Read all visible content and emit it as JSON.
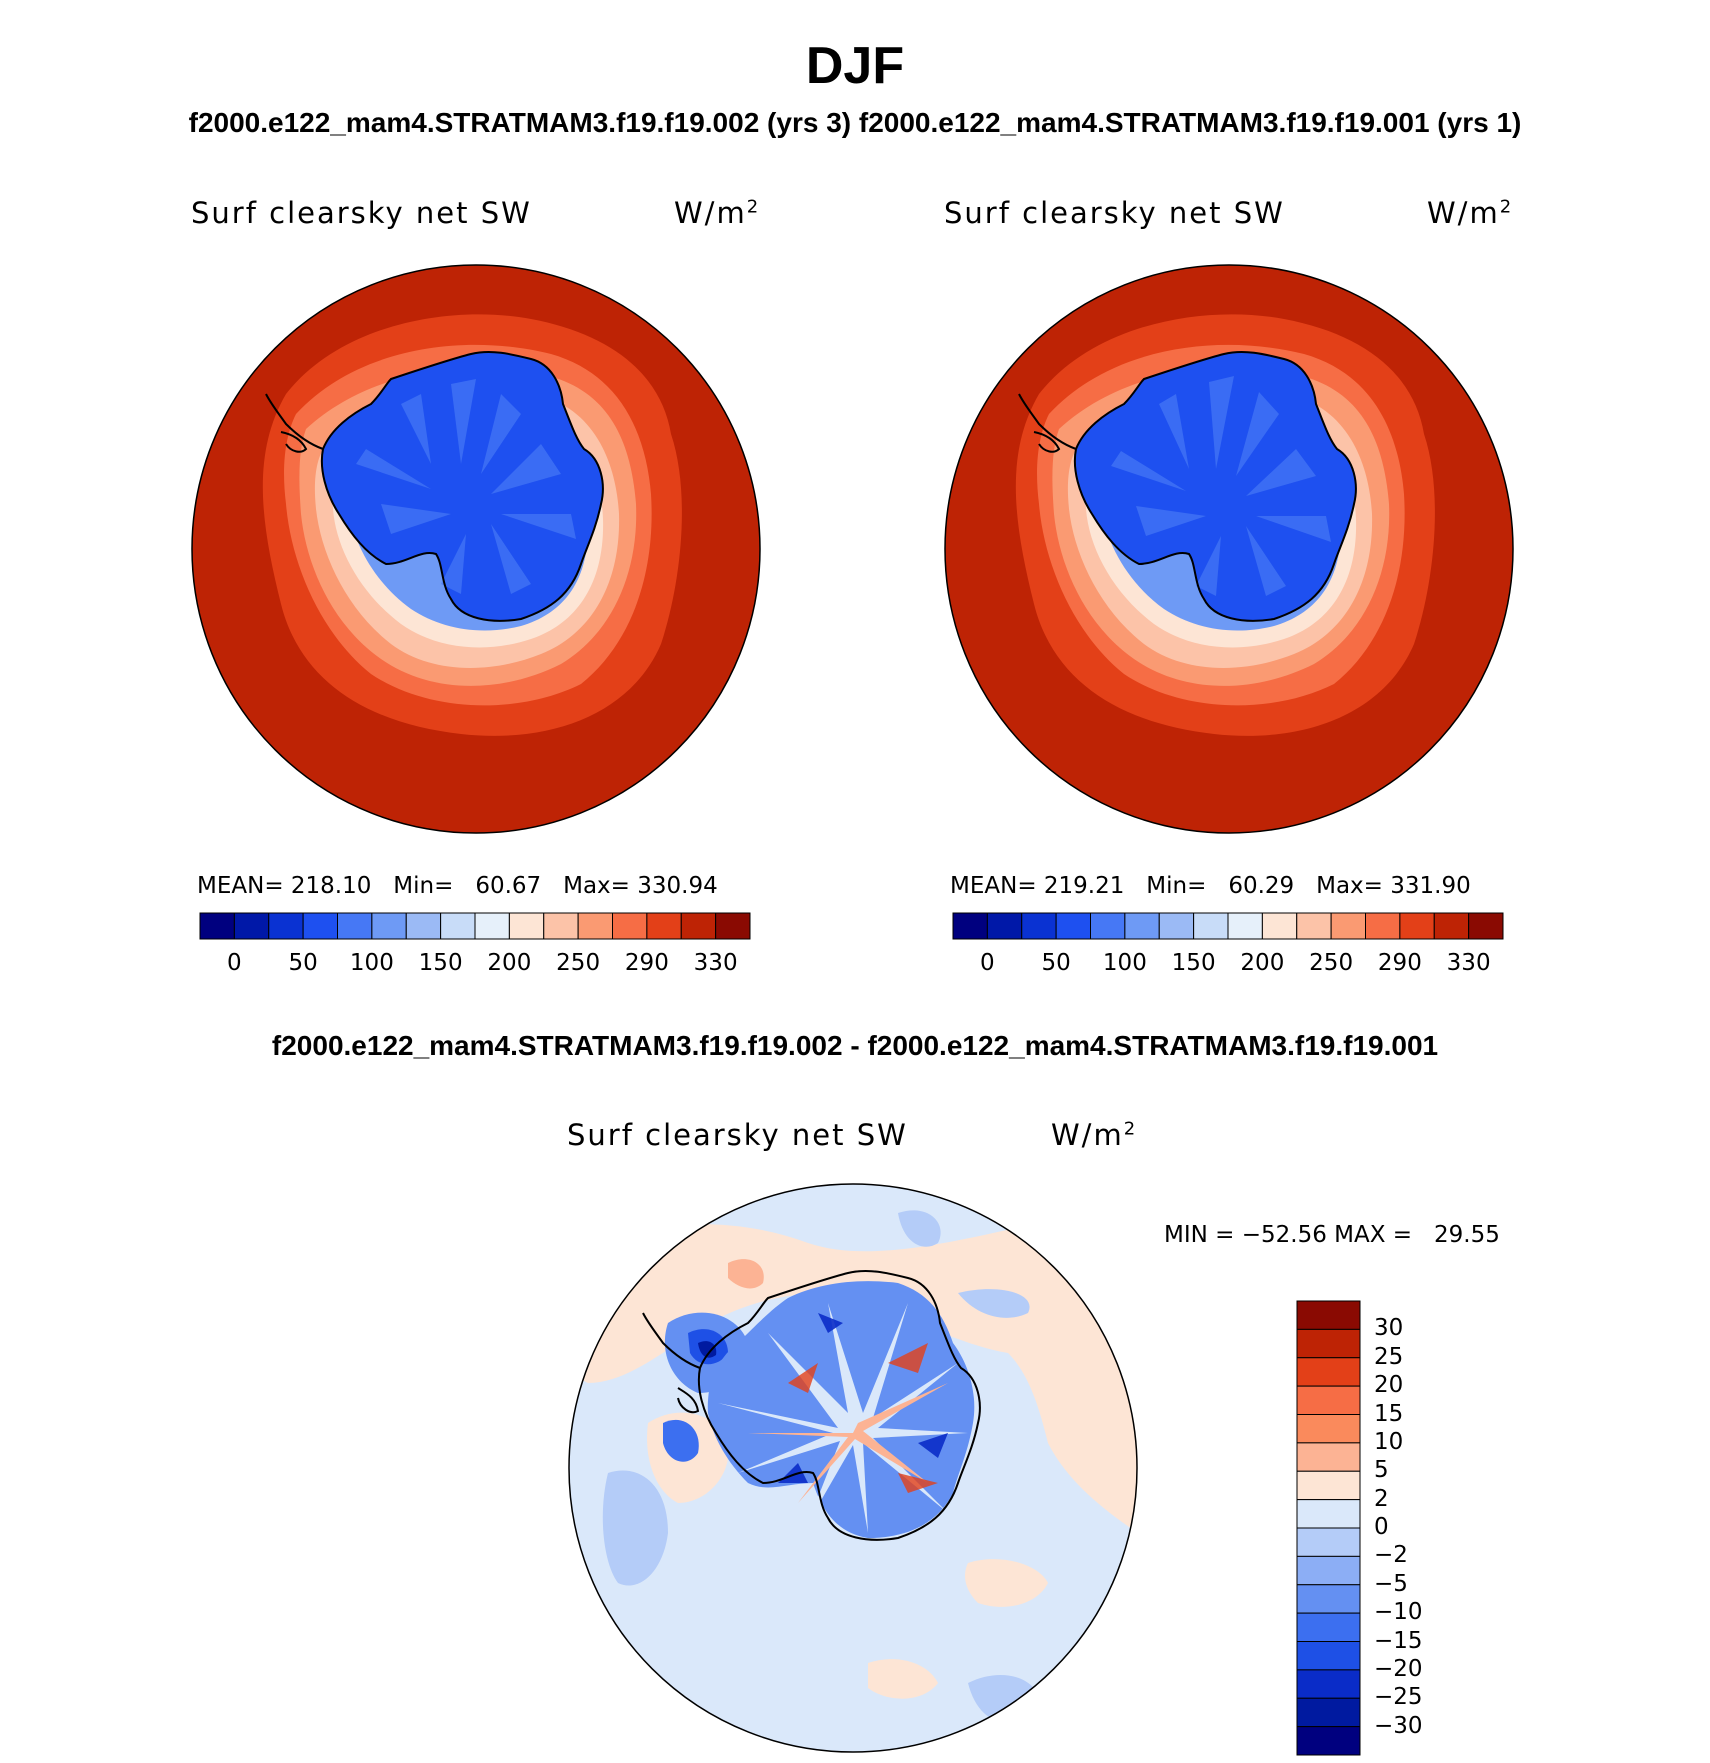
{
  "figure": {
    "title": "DJF",
    "top_subtitle": "f2000.e122_mam4.STRATMAM3.f19.f19.002 (yrs 3)  f2000.e122_mam4.STRATMAM3.f19.f19.001 (yrs 1)",
    "diff_subtitle": "f2000.e122_mam4.STRATMAM3.f19.f19.002 - f2000.e122_mam4.STRATMAM3.f19.f19.001"
  },
  "chart_data": [
    {
      "type": "heatmap",
      "projection": "south-polar-stereographic",
      "title": "Surf clearsky net SW",
      "units": "W/m",
      "units_superscript": "2",
      "stats": {
        "mean": "218.10",
        "min": "60.67",
        "max": "330.94"
      },
      "stats_text": "MEAN= 218.10   Min=   60.67   Max= 330.94",
      "colorbar_tick_labels": [
        "0",
        "50",
        "100",
        "150",
        "200",
        "250",
        "290",
        "330"
      ],
      "levels": [
        0,
        25,
        50,
        75,
        100,
        125,
        150,
        175,
        200,
        225,
        250,
        270,
        290,
        310,
        330
      ],
      "colors": [
        "#00007f",
        "#0018a8",
        "#0a32d2",
        "#1e50f0",
        "#4678f5",
        "#6e9af5",
        "#9bbaf5",
        "#c8dcf8",
        "#e6f0fa",
        "#fde5d5",
        "#fcc3a8",
        "#fa9a72",
        "#f66d45",
        "#e34018",
        "#be2305",
        "#8a0a02"
      ]
    },
    {
      "type": "heatmap",
      "projection": "south-polar-stereographic",
      "title": "Surf clearsky net SW",
      "units": "W/m",
      "units_superscript": "2",
      "stats": {
        "mean": "219.21",
        "min": "60.29",
        "max": "331.90"
      },
      "stats_text": "MEAN= 219.21   Min=   60.29   Max= 331.90",
      "colorbar_tick_labels": [
        "0",
        "50",
        "100",
        "150",
        "200",
        "250",
        "290",
        "330"
      ],
      "levels": [
        0,
        25,
        50,
        75,
        100,
        125,
        150,
        175,
        200,
        225,
        250,
        270,
        290,
        310,
        330
      ],
      "colors": [
        "#00007f",
        "#0018a8",
        "#0a32d2",
        "#1e50f0",
        "#4678f5",
        "#6e9af5",
        "#9bbaf5",
        "#c8dcf8",
        "#e6f0fa",
        "#fde5d5",
        "#fcc3a8",
        "#fa9a72",
        "#f66d45",
        "#e34018",
        "#be2305",
        "#8a0a02"
      ]
    },
    {
      "type": "heatmap",
      "projection": "south-polar-stereographic",
      "title": "Surf clearsky net SW",
      "units": "W/m",
      "units_superscript": "2",
      "stats": {
        "min": "-52.56",
        "max": "29.55"
      },
      "stats_text": "MIN = −52.56 MAX =   29.55",
      "colorbar_tick_labels": [
        "30",
        "25",
        "20",
        "15",
        "10",
        "5",
        "2",
        "0",
        "−2",
        "−5",
        "−10",
        "−15",
        "−20",
        "−25",
        "−30"
      ],
      "colors_top_to_bottom": [
        "#8a0a02",
        "#be2305",
        "#e34018",
        "#f66d45",
        "#fa8a5c",
        "#fcb394",
        "#fde5d5",
        "#dae8fa",
        "#b4ccf8",
        "#8caef5",
        "#6490f2",
        "#3c6ff0",
        "#1e50e6",
        "#0a2cc8",
        "#001aa0",
        "#00007f"
      ]
    }
  ]
}
